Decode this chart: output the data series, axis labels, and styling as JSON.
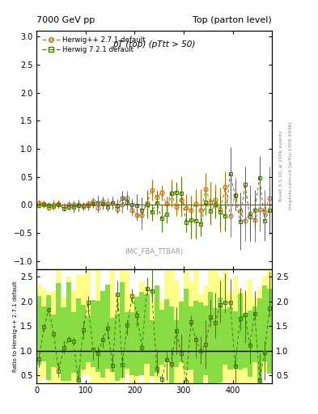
{
  "title_left": "7000 GeV pp",
  "title_right": "Top (parton level)",
  "plot_title": "pT (top) (pTtt > 50)",
  "ylabel_ratio": "Ratio to Herwig++ 2.7.1 default",
  "right_label": "mcplots.cern.ch [arXiv:1306.3436]",
  "right_label2": "Rivet 3.1.10, ≥ 100k events",
  "watermark": "(MC_FBA_TTBAR)",
  "legend1": "Herwig++ 2.7.1 default",
  "legend2": "Herwig 7.2.1 default",
  "color1": "#cc6600",
  "color2": "#447700",
  "color2_dark": "#336600",
  "green_band": "#88dd44",
  "yellow_band": "#ffff88",
  "main_ylim": [
    -1.15,
    3.1
  ],
  "ratio_ylim": [
    0.35,
    2.65
  ],
  "xlim": [
    0,
    480
  ],
  "main_yticks": [
    -1.0,
    -0.5,
    0.0,
    0.5,
    1.0,
    1.5,
    2.0,
    2.5,
    3.0
  ],
  "ratio_yticks": [
    0.5,
    1.0,
    1.5,
    2.0,
    2.5
  ],
  "xticks": [
    0,
    100,
    200,
    300,
    400
  ]
}
